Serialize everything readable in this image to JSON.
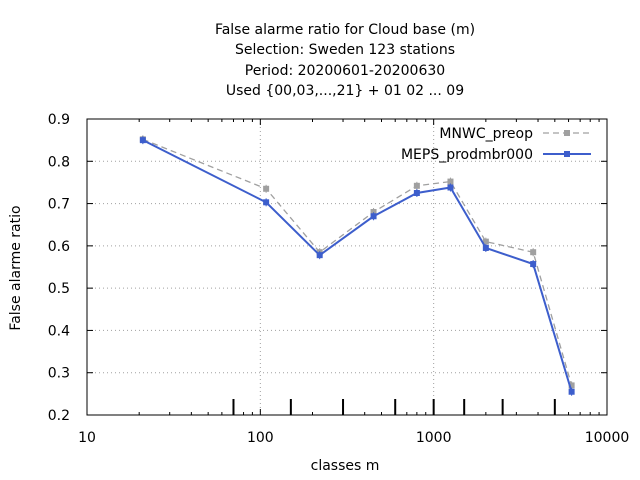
{
  "chart_data": {
    "type": "line",
    "title_lines": [
      "False alarme ratio  for Cloud base (m)",
      "Selection: Sweden    123 stations",
      "Period: 20200601-20200630",
      "Used {00,03,...,21} + 01 02 ... 09"
    ],
    "xlabel": "classes m",
    "ylabel": "False alarme ratio",
    "x_scale": "log",
    "xlim": [
      10,
      10000
    ],
    "ylim": [
      0.2,
      0.9
    ],
    "x_ticks": [
      10,
      100,
      1000,
      10000
    ],
    "x_tick_labels": [
      "10",
      "100",
      "1000",
      "10000"
    ],
    "y_ticks": [
      0.2,
      0.3,
      0.4,
      0.5,
      0.6,
      0.7,
      0.8,
      0.9
    ],
    "y_tick_labels": [
      "0.2",
      "0.3",
      "0.4",
      "0.5",
      "0.6",
      "0.7",
      "0.8",
      "0.9"
    ],
    "grid": true,
    "legend_position": "top-right",
    "class_marks": [
      70,
      150,
      300,
      600,
      1000,
      1500,
      2500,
      5000
    ],
    "series": [
      {
        "name": "MNWC_preop",
        "color": "#a0a0a0",
        "style": "dashed",
        "x": [
          21,
          108,
          220,
          450,
          800,
          1250,
          2000,
          3750,
          6250
        ],
        "y": [
          0.852,
          0.735,
          0.585,
          0.68,
          0.742,
          0.752,
          0.61,
          0.585,
          0.27
        ]
      },
      {
        "name": "MEPS_prodmbr000",
        "color": "#3d5ecc",
        "style": "solid",
        "x": [
          21,
          108,
          220,
          450,
          800,
          1250,
          2000,
          3750,
          6250
        ],
        "y": [
          0.85,
          0.703,
          0.578,
          0.67,
          0.725,
          0.738,
          0.595,
          0.557,
          0.255
        ]
      }
    ]
  }
}
